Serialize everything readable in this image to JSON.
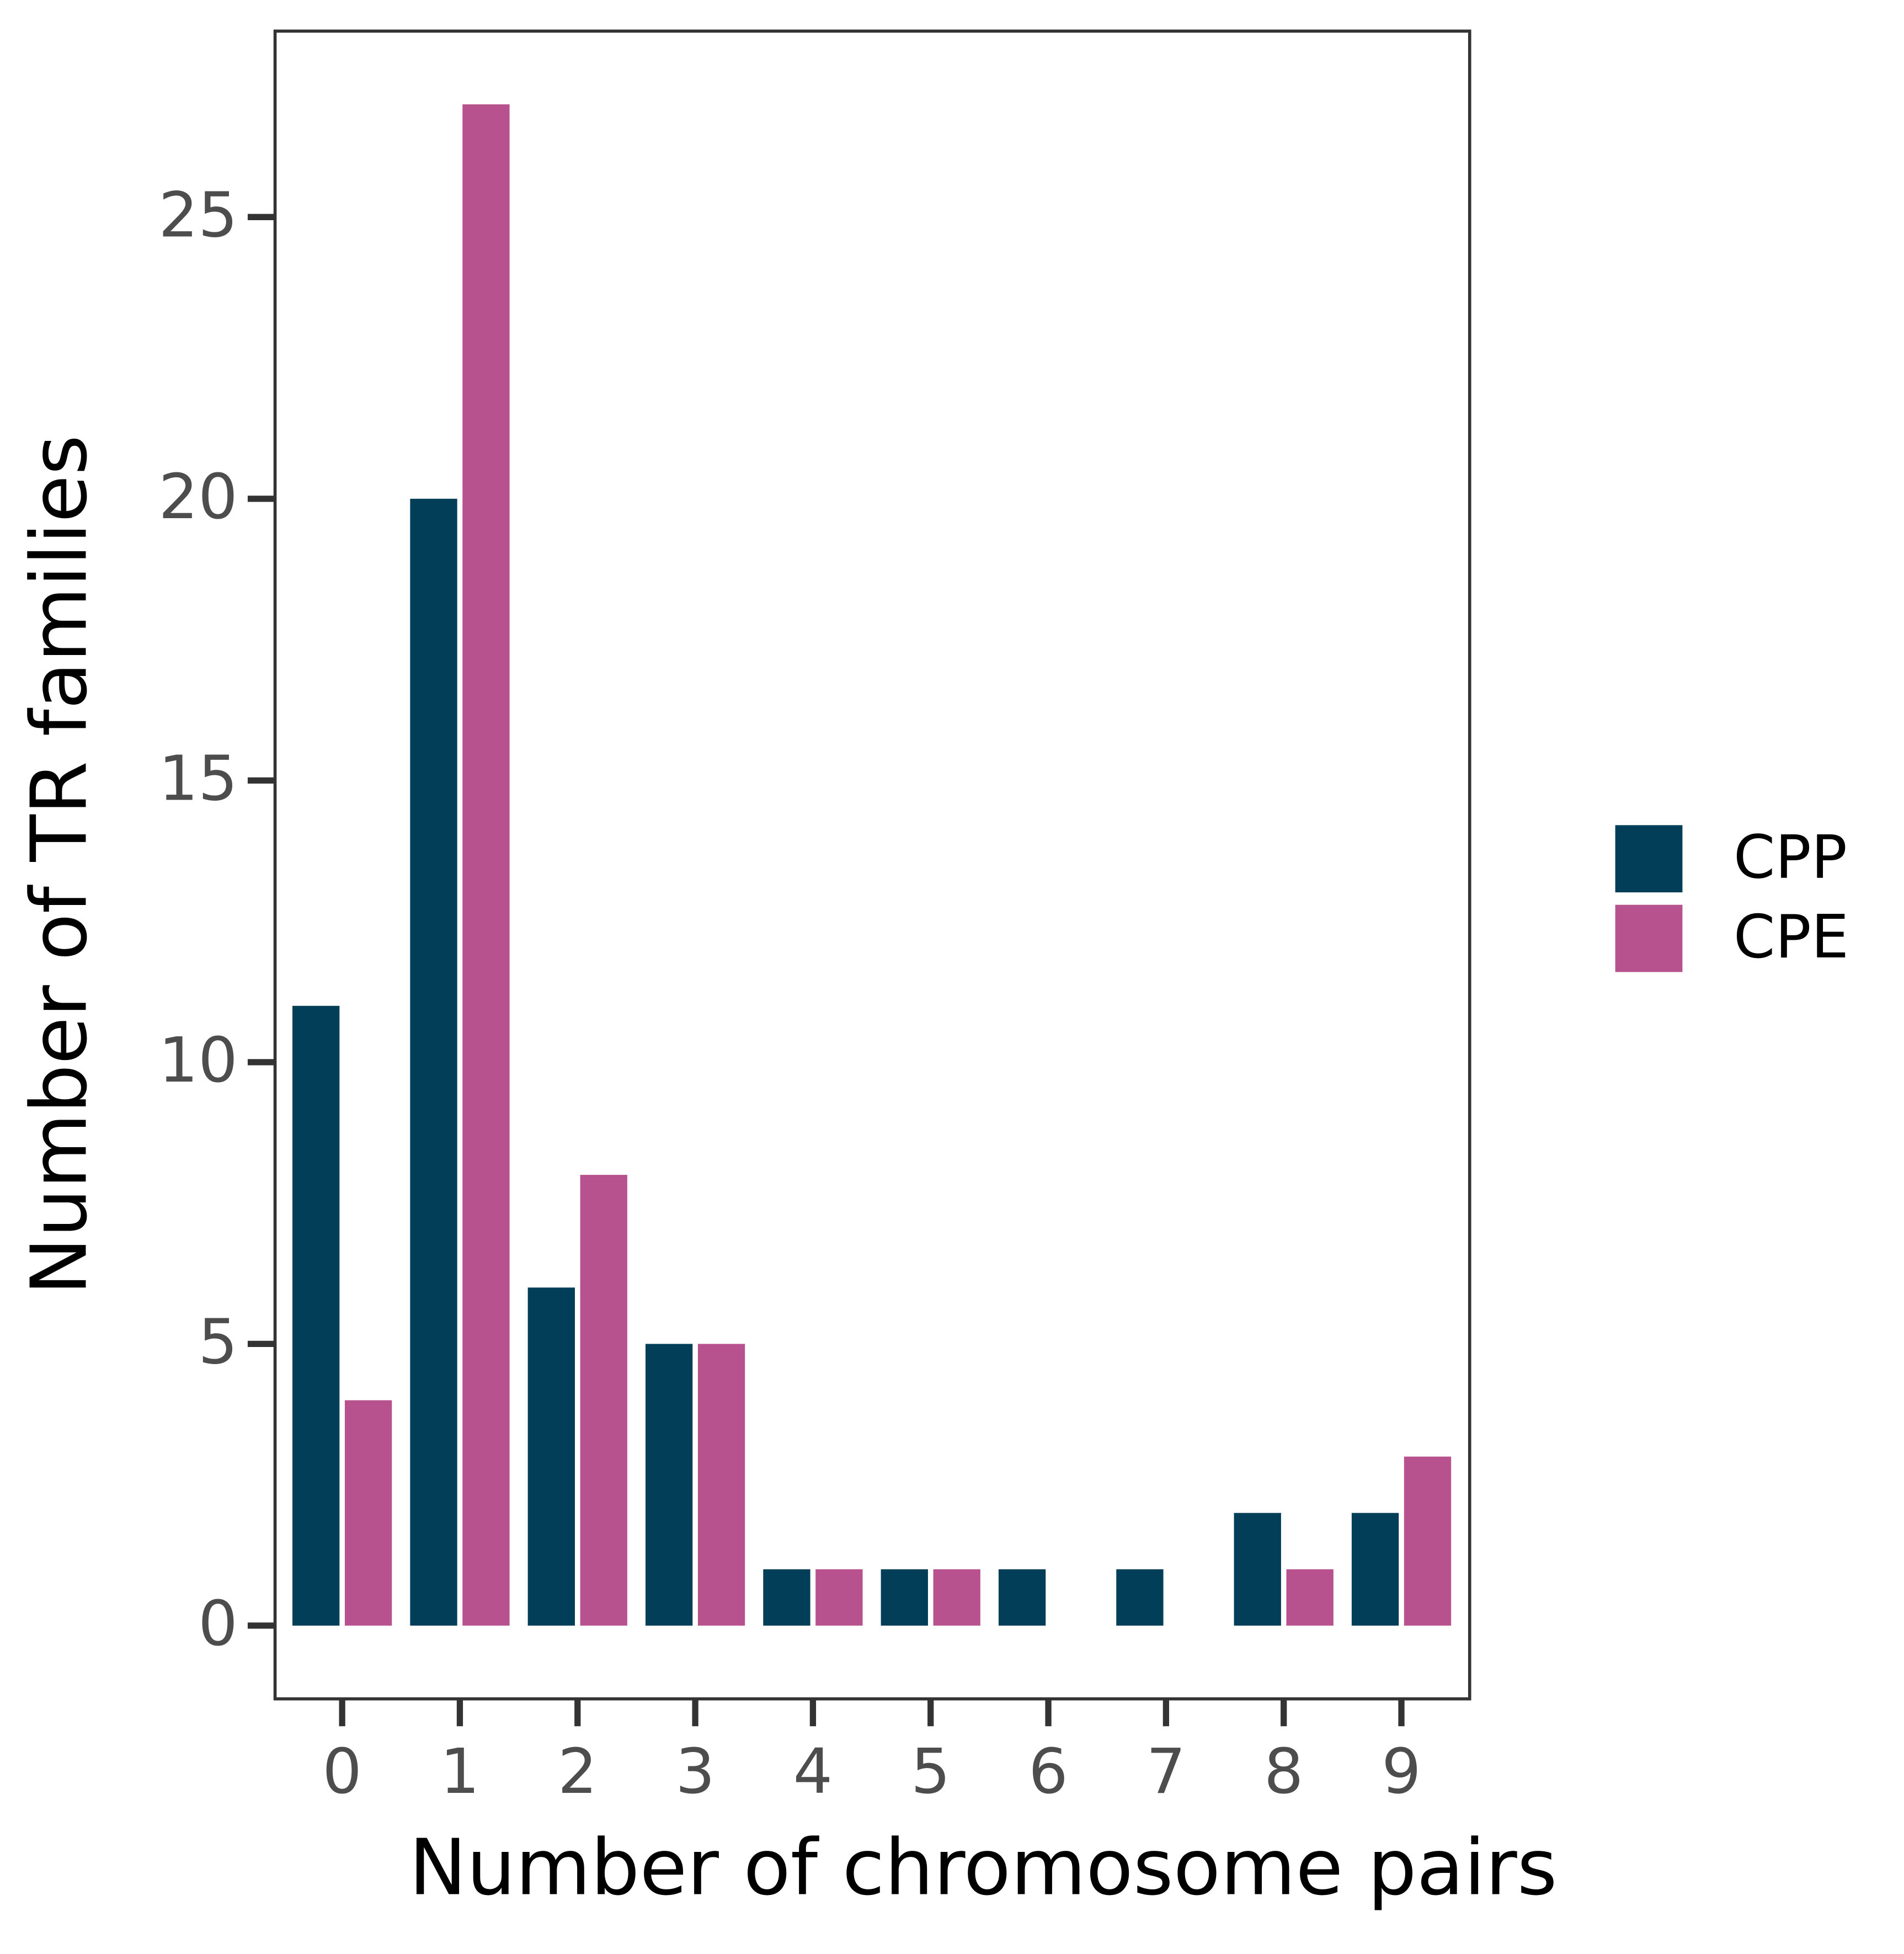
{
  "chart_data": {
    "type": "bar",
    "x_label": "Number of chromosome pairs",
    "y_label": "Number of TR families",
    "x": [
      0,
      1,
      2,
      3,
      4,
      5,
      6,
      7,
      8,
      9
    ],
    "series": [
      {
        "name": "CPP",
        "color": "#023e58",
        "values": [
          11,
          20,
          6,
          5,
          1,
          1,
          1,
          1,
          2,
          2
        ]
      },
      {
        "name": "CPE",
        "color": "#b8528e",
        "values": [
          4,
          27,
          8,
          5,
          1,
          1,
          0,
          0,
          1,
          3
        ]
      }
    ],
    "xlim": [
      -0.57,
      9.58
    ],
    "xticks": [
      0,
      1,
      2,
      3,
      4,
      5,
      6,
      7,
      8,
      9
    ],
    "ylim": [
      -1.3,
      28.3
    ],
    "yticks": [
      0,
      5,
      10,
      15,
      20,
      25
    ],
    "grid": false,
    "legend": "right"
  }
}
